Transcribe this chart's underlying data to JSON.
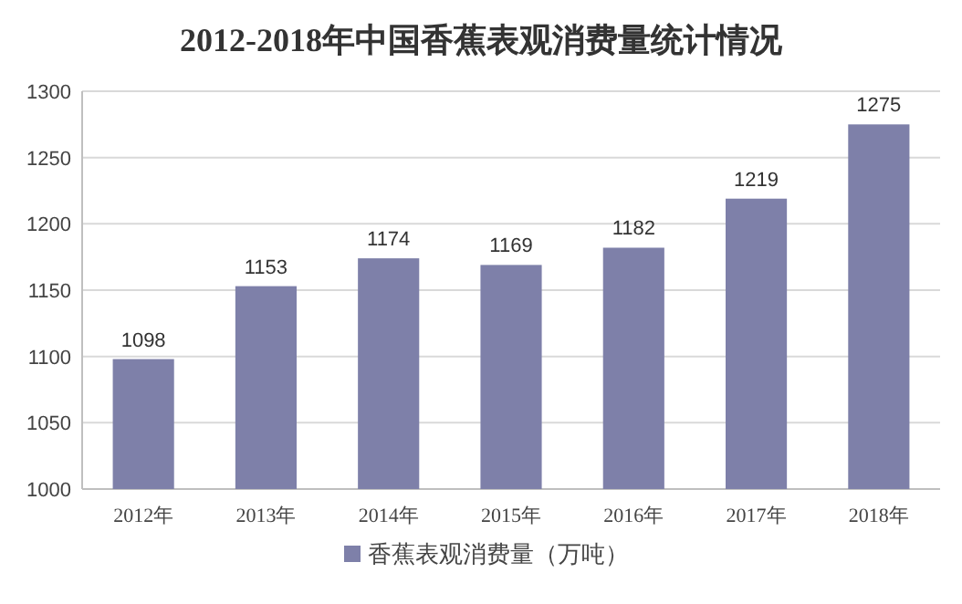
{
  "chart_data": {
    "type": "bar",
    "title": "2012-2018年中国香蕉表观消费量统计情况",
    "categories": [
      "2012年",
      "2013年",
      "2014年",
      "2015年",
      "2016年",
      "2017年",
      "2018年"
    ],
    "series": [
      {
        "name": "香蕉表观消费量（万吨）",
        "color": "#7e80a9",
        "values": [
          1098,
          1153,
          1174,
          1169,
          1182,
          1219,
          1275
        ]
      }
    ],
    "ylim": [
      1000,
      1300
    ],
    "yticks": [
      1000,
      1050,
      1100,
      1150,
      1200,
      1250,
      1300
    ],
    "grid": "y",
    "legend": "bottom",
    "data_labels": true
  }
}
